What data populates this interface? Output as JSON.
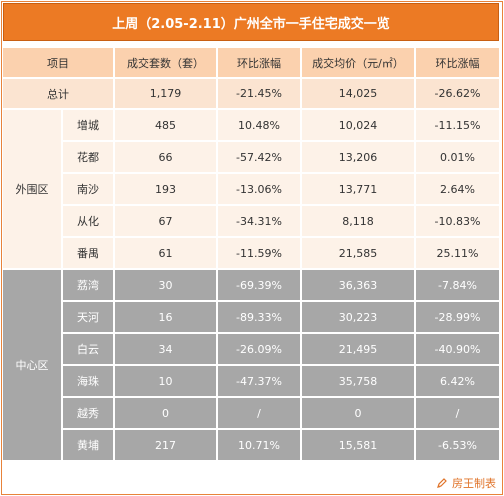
{
  "title": "上周（2.05-2.11）广州全市一手住宅成交一览",
  "headers": [
    "项目",
    "成交套数（套）",
    "环比涨幅",
    "成交均价（元/㎡）",
    "环比涨幅"
  ],
  "total": {
    "label": "总计",
    "units": "1,179",
    "units_change": "-21.45%",
    "price": "14,025",
    "price_change": "-26.62%"
  },
  "outer": {
    "label": "外围区",
    "rows": [
      {
        "district": "增城",
        "units": "485",
        "units_change": "10.48%",
        "price": "10,024",
        "price_change": "-11.15%"
      },
      {
        "district": "花都",
        "units": "66",
        "units_change": "-57.42%",
        "price": "13,206",
        "price_change": "0.01%"
      },
      {
        "district": "南沙",
        "units": "193",
        "units_change": "-13.06%",
        "price": "13,771",
        "price_change": "2.64%"
      },
      {
        "district": "从化",
        "units": "67",
        "units_change": "-34.31%",
        "price": "8,118",
        "price_change": "-10.83%"
      },
      {
        "district": "番禺",
        "units": "61",
        "units_change": "-11.59%",
        "price": "21,585",
        "price_change": "25.11%"
      }
    ]
  },
  "center": {
    "label": "中心区",
    "rows": [
      {
        "district": "荔湾",
        "units": "30",
        "units_change": "-69.39%",
        "price": "36,363",
        "price_change": "-7.84%"
      },
      {
        "district": "天河",
        "units": "16",
        "units_change": "-89.33%",
        "price": "30,223",
        "price_change": "-28.99%"
      },
      {
        "district": "白云",
        "units": "34",
        "units_change": "-26.09%",
        "price": "21,495",
        "price_change": "-40.90%"
      },
      {
        "district": "海珠",
        "units": "10",
        "units_change": "-47.37%",
        "price": "35,758",
        "price_change": "6.42%"
      },
      {
        "district": "越秀",
        "units": "0",
        "units_change": "/",
        "price": "0",
        "price_change": "/"
      },
      {
        "district": "黄埔",
        "units": "217",
        "units_change": "10.71%",
        "price": "15,581",
        "price_change": "-6.53%"
      }
    ]
  },
  "footer": {
    "credit": "房王制表",
    "icon": "pen-icon"
  },
  "colors": {
    "accent": "#ec7a24",
    "header_bg": "#fbd1ae",
    "outer_bg": "#fdf2e8",
    "center_bg": "#a7a7a7"
  }
}
